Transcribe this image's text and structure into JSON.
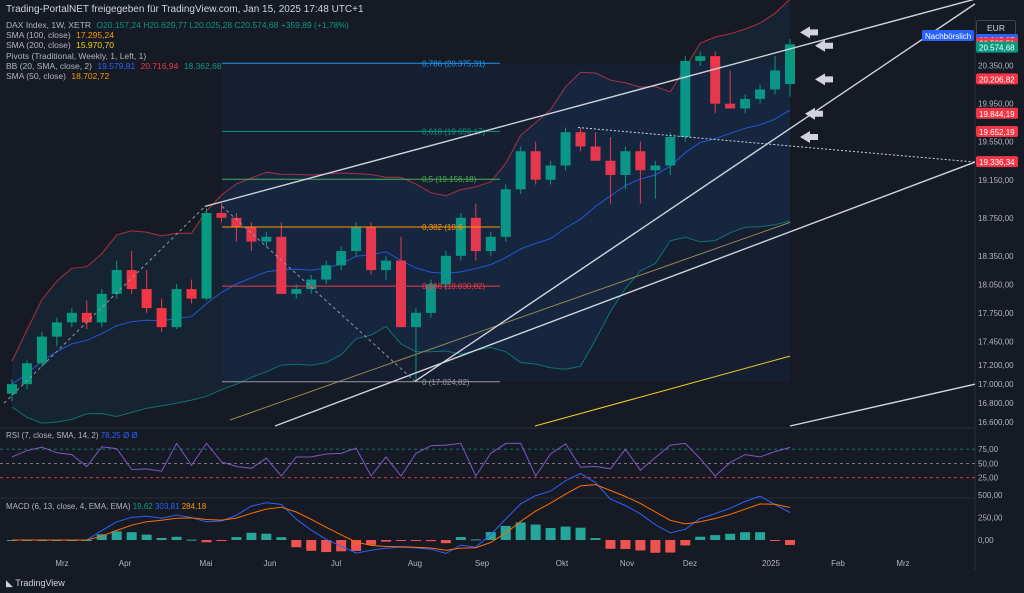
{
  "header": {
    "text": "Trading-PortalNET freigegeben für TradingView.com, Jan 15, 2025 17:48 UTC+1"
  },
  "legend": {
    "title": "DAX Index, 1W, XETR",
    "ohlc": "O20.157,24 H20.629,77 L20.025,28 C20.574,68 +359,89 (+1,78%)",
    "sma100_label": "SMA (100, close)",
    "sma100_value": "17.295,24",
    "sma200_label": "SMA (200, close)",
    "sma200_value": "15.970,70",
    "pivots_label": "Pivots (Traditional, Weekly, 1, Left, 1)",
    "bb_label": "BB (20, SMA, close, 2)",
    "bb_v1": "19.579,81",
    "bb_v2": "20.716,94",
    "bb_v3": "18.362,68",
    "sma50_label": "SMA (50, close)",
    "sma50_value": "18.702,72"
  },
  "currency": "EUR",
  "price_tags": [
    {
      "text": "Nachbörslich",
      "color": "#2962ff",
      "price": 20640
    },
    {
      "text": "20.615,87",
      "color": "#2962ff",
      "price": 20620
    },
    {
      "text": "20.583,51",
      "color": "#f23645",
      "price": 20583
    },
    {
      "text": "20.574,68",
      "color": "#089981",
      "price": 20540
    },
    {
      "text": "20.206,82",
      "color": "#f23645",
      "price": 20206
    },
    {
      "text": "19.844,19",
      "color": "#f23645",
      "price": 19844
    },
    {
      "text": "19.652,19",
      "color": "#f23645",
      "price": 19652
    },
    {
      "text": "19.336,34",
      "color": "#f23645",
      "price": 19336
    }
  ],
  "fib_levels": [
    {
      "label": "0,786 (20.375,31)",
      "price": 20375,
      "color": "#2196f3"
    },
    {
      "label": "0,618 (19.659,17)",
      "price": 19659,
      "color": "#089981"
    },
    {
      "label": "0,5 (19.156,18)",
      "price": 19156,
      "color": "#4caf50"
    },
    {
      "label": "0,382 (18.6",
      "price": 18653,
      "color": "#ff9800"
    },
    {
      "label": "0,236 (18.030,82)",
      "price": 18031,
      "color": "#f23645"
    },
    {
      "label": "0 (17.024,82)",
      "price": 17025,
      "color": "#9598a1"
    }
  ],
  "rsi": {
    "label": "RSI (7, close, SMA, 14, 2)",
    "value_text": "78,25 Ø Ø",
    "ticks": [
      "75,00",
      "50,00",
      "25,00"
    ]
  },
  "macd": {
    "label": "MACD (6, 13, close, 4, EMA, EMA)",
    "v1": "19,62",
    "v2": "303,81",
    "v3": "284,18",
    "ticks": [
      "500,00",
      "250,00",
      "0,00"
    ]
  },
  "footer": {
    "brand": "TradingView"
  },
  "chart_data": {
    "type": "candlestick",
    "title": "DAX Index, 1W, XETR",
    "x_ticks": [
      "Mrz",
      "Apr",
      "Mai",
      "Jun",
      "Jul",
      "Aug",
      "Sep",
      "Okt",
      "Nov",
      "Dez",
      "2025",
      "Feb",
      "Mrz"
    ],
    "y_ticks": [
      "20.350,00",
      "19.950,00",
      "19.550,00",
      "19.150,00",
      "18.750,00",
      "18.350,00",
      "18.050,00",
      "17.750,00",
      "17.450,00",
      "17.200,00",
      "17.000,00",
      "16.800,00",
      "16.600,00"
    ],
    "y_tick_values": [
      20350,
      19950,
      19550,
      19150,
      18750,
      18350,
      18050,
      17750,
      17450,
      17200,
      17000,
      16800,
      16600
    ],
    "candles": [
      [
        16900,
        17050,
        16820,
        17000
      ],
      [
        17000,
        17250,
        16950,
        17220
      ],
      [
        17220,
        17550,
        17180,
        17500
      ],
      [
        17500,
        17700,
        17400,
        17650
      ],
      [
        17650,
        17800,
        17600,
        17750
      ],
      [
        17750,
        17880,
        17580,
        17650
      ],
      [
        17650,
        18000,
        17600,
        17950
      ],
      [
        17950,
        18300,
        17900,
        18200
      ],
      [
        18200,
        18400,
        17950,
        18000
      ],
      [
        18000,
        18200,
        17750,
        17800
      ],
      [
        17800,
        17900,
        17550,
        17600
      ],
      [
        17600,
        18050,
        17580,
        18000
      ],
      [
        18000,
        18100,
        17850,
        17900
      ],
      [
        17900,
        18850,
        17880,
        18800
      ],
      [
        18800,
        18900,
        18700,
        18750
      ],
      [
        18750,
        18800,
        18500,
        18650
      ],
      [
        18650,
        18700,
        18400,
        18500
      ],
      [
        18500,
        18600,
        18450,
        18550
      ],
      [
        18550,
        18700,
        17950,
        17950
      ],
      [
        17950,
        18050,
        17900,
        18000
      ],
      [
        18000,
        18150,
        17950,
        18100
      ],
      [
        18100,
        18300,
        18050,
        18250
      ],
      [
        18250,
        18450,
        18200,
        18400
      ],
      [
        18400,
        18700,
        18350,
        18650
      ],
      [
        18650,
        18700,
        18150,
        18200
      ],
      [
        18200,
        18350,
        18100,
        18300
      ],
      [
        18300,
        18550,
        17600,
        17600
      ],
      [
        17600,
        17800,
        17050,
        17750
      ],
      [
        17750,
        18100,
        17700,
        18050
      ],
      [
        18050,
        18400,
        18000,
        18350
      ],
      [
        18350,
        18800,
        18300,
        18750
      ],
      [
        18750,
        18900,
        18300,
        18400
      ],
      [
        18400,
        18600,
        18350,
        18550
      ],
      [
        18550,
        19100,
        18500,
        19050
      ],
      [
        19050,
        19500,
        19000,
        19450
      ],
      [
        19450,
        19550,
        19100,
        19150
      ],
      [
        19150,
        19350,
        19100,
        19300
      ],
      [
        19300,
        19700,
        19250,
        19650
      ],
      [
        19650,
        19700,
        19450,
        19500
      ],
      [
        19500,
        19650,
        19350,
        19350
      ],
      [
        19350,
        19600,
        18900,
        19200
      ],
      [
        19200,
        19500,
        19050,
        19450
      ],
      [
        19450,
        19550,
        18900,
        19250
      ],
      [
        19250,
        19350,
        18950,
        19300
      ],
      [
        19300,
        19650,
        19200,
        19600
      ],
      [
        19600,
        20450,
        19550,
        20400
      ],
      [
        20400,
        20500,
        20350,
        20450
      ],
      [
        20450,
        20500,
        19850,
        19950
      ],
      [
        19950,
        20300,
        19900,
        19900
      ],
      [
        19900,
        20050,
        19850,
        20000
      ],
      [
        20000,
        20150,
        19950,
        20100
      ],
      [
        20100,
        20450,
        20050,
        20300
      ],
      [
        20157,
        20630,
        20025,
        20575
      ]
    ]
  }
}
